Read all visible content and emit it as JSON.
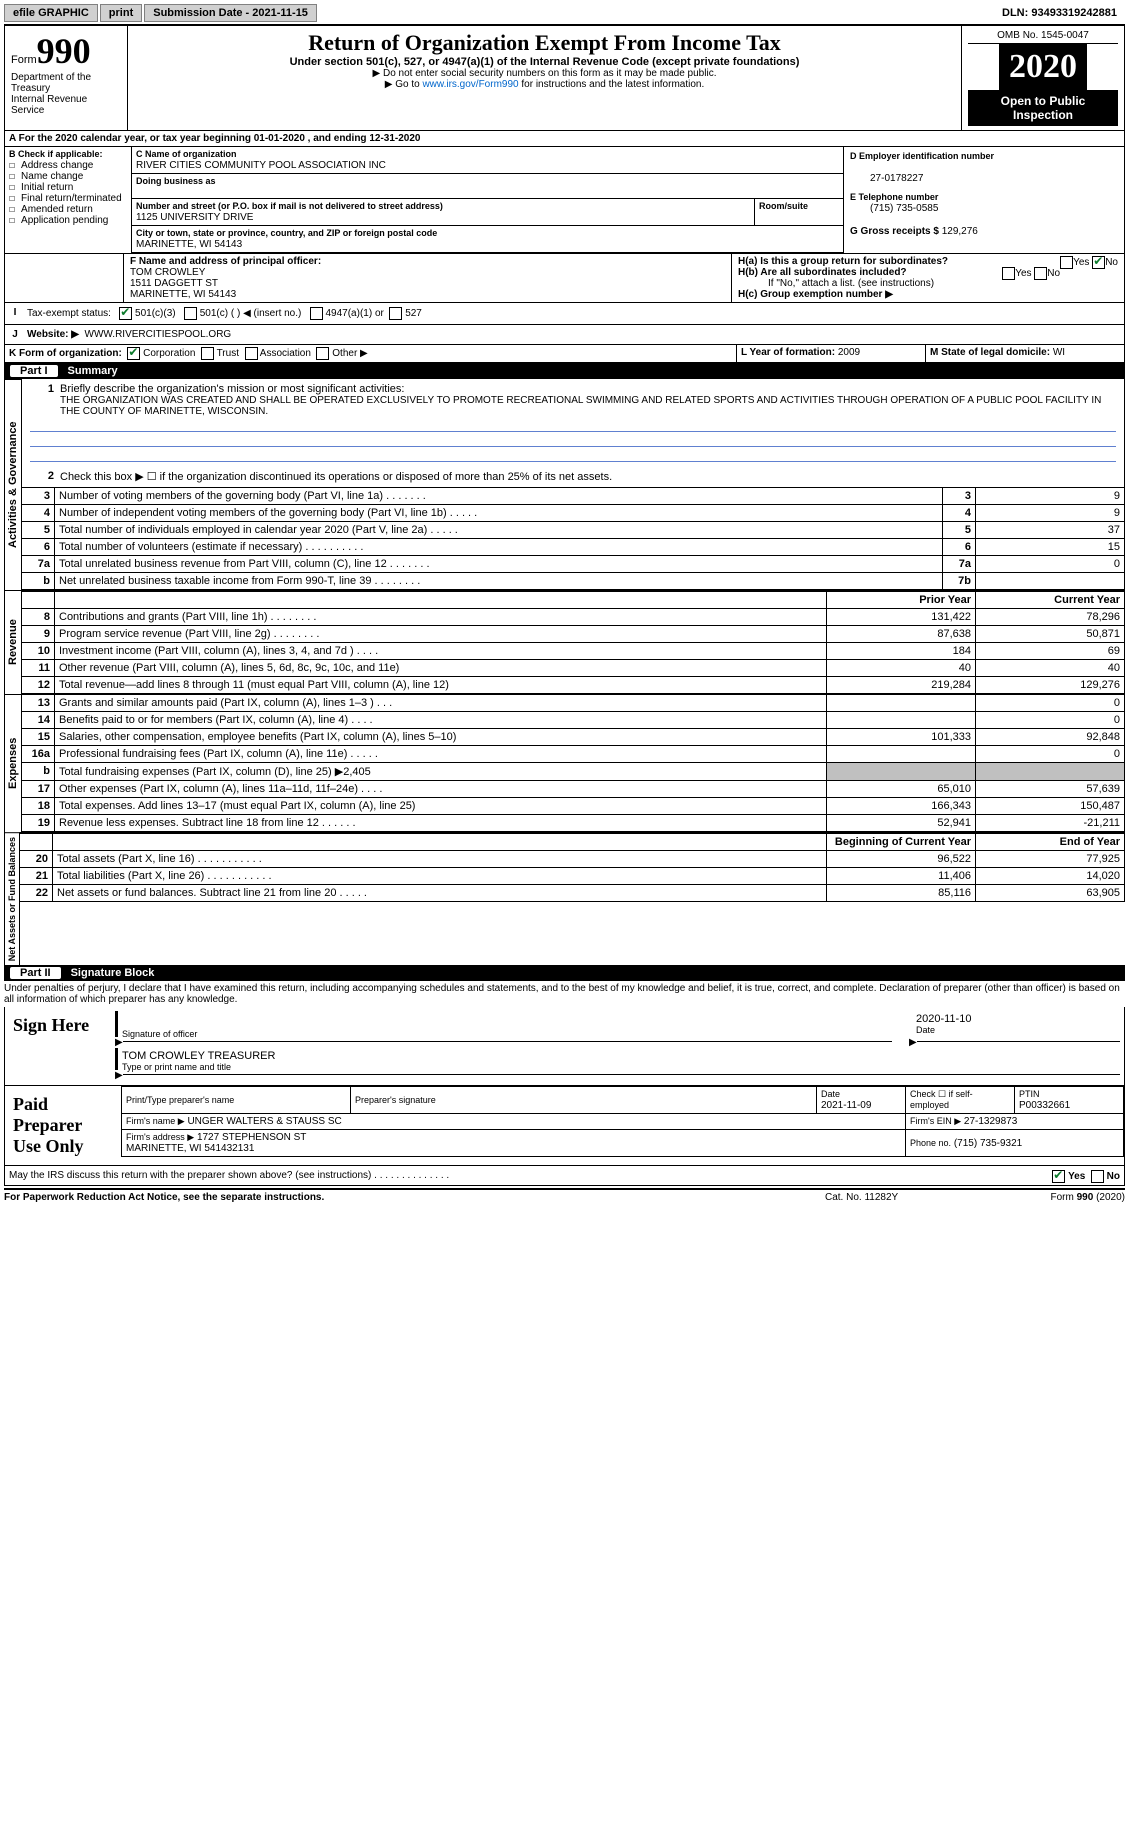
{
  "topbar": {
    "efile": "efile GRAPHIC",
    "print": "print",
    "submission_label": "Submission Date - 2021-11-15",
    "dln": "DLN: 93493319242881"
  },
  "header": {
    "form_word": "Form",
    "form_no": "990",
    "dept1": "Department of the Treasury",
    "dept2": "Internal Revenue Service",
    "title": "Return of Organization Exempt From Income Tax",
    "subtitle": "Under section 501(c), 527, or 4947(a)(1) of the Internal Revenue Code (except private foundations)",
    "note1": "▶ Do not enter social security numbers on this form as it may be made public.",
    "note2_pre": "▶ Go to ",
    "note2_link": "www.irs.gov/Form990",
    "note2_post": " for instructions and the latest information.",
    "omb": "OMB No. 1545-0047",
    "year": "2020",
    "open": "Open to Public Inspection"
  },
  "section_a": {
    "caption": "A For the 2020 calendar year, or tax year beginning 01-01-2020   , and ending 12-31-2020",
    "b_label": "B Check if applicable:",
    "b_items": [
      "Address change",
      "Name change",
      "Initial return",
      "Final return/terminated",
      "Amended return",
      "Application pending"
    ],
    "c_name_label": "C Name of organization",
    "c_name": "RIVER CITIES COMMUNITY POOL ASSOCIATION INC",
    "dba_label": "Doing business as",
    "addr_label": "Number and street (or P.O. box if mail is not delivered to street address)",
    "room_label": "Room/suite",
    "addr": "1125 UNIVERSITY DRIVE",
    "city_label": "City or town, state or province, country, and ZIP or foreign postal code",
    "city": "MARINETTE, WI  54143",
    "d_label": "D Employer identification number",
    "d_val": "27-0178227",
    "e_label": "E Telephone number",
    "e_val": "(715) 735-0585",
    "g_label": "G Gross receipts $",
    "g_val": "129,276",
    "f_label": "F Name and address of principal officer:",
    "f_name": "TOM CROWLEY",
    "f_addr1": "1511 DAGGETT ST",
    "f_addr2": "MARINETTE, WI  54143",
    "ha_label": "H(a)  Is this a group return for subordinates?",
    "hb_label": "H(b)  Are all subordinates included?",
    "hb_note": "If \"No,\" attach a list. (see instructions)",
    "hc_label": "H(c)  Group exemption number ▶",
    "yes": "Yes",
    "no": "No",
    "i_label": "Tax-exempt status:",
    "i_501c3": "501(c)(3)",
    "i_501c": "501(c) (  ) ◀ (insert no.)",
    "i_4947": "4947(a)(1) or",
    "i_527": "527",
    "j_label": "Website: ▶",
    "j_val": "WWW.RIVERCITIESPOOL.ORG",
    "k_label": "K Form of organization:",
    "k_corp": "Corporation",
    "k_trust": "Trust",
    "k_assoc": "Association",
    "k_other": "Other ▶",
    "l_label": "L Year of formation: ",
    "l_val": "2009",
    "m_label": "M State of legal domicile: ",
    "m_val": "WI"
  },
  "part1": {
    "title": "Summary",
    "q1": "Briefly describe the organization's mission or most significant activities:",
    "mission": "THE ORGANIZATION WAS CREATED AND SHALL BE OPERATED EXCLUSIVELY TO PROMOTE RECREATIONAL SWIMMING AND RELATED SPORTS AND ACTIVITIES THROUGH OPERATION OF A PUBLIC POOL FACILITY IN THE COUNTY OF MARINETTE, WISCONSIN.",
    "q2": "Check this box ▶ ☐  if the organization discontinued its operations or disposed of more than 25% of its net assets.",
    "tabs": {
      "gov": "Activities & Governance",
      "rev": "Revenue",
      "exp": "Expenses",
      "net": "Net Assets or Fund Balances"
    },
    "gov_rows": [
      {
        "n": "3",
        "desc": "Number of voting members of the governing body (Part VI, line 1a)   .    .    .    .    .    .    .",
        "num": "3",
        "val": "9"
      },
      {
        "n": "4",
        "desc": "Number of independent voting members of the governing body (Part VI, line 1b)   .    .    .    .    .",
        "num": "4",
        "val": "9"
      },
      {
        "n": "5",
        "desc": "Total number of individuals employed in calendar year 2020 (Part V, line 2a)   .    .    .    .    .",
        "num": "5",
        "val": "37"
      },
      {
        "n": "6",
        "desc": "Total number of volunteers (estimate if necessary)   .    .    .    .    .    .    .    .    .    .",
        "num": "6",
        "val": "15"
      },
      {
        "n": "7a",
        "desc": "Total unrelated business revenue from Part VIII, column (C), line 12   .    .    .    .    .    .    .",
        "num": "7a",
        "val": "0"
      },
      {
        "n": "b",
        "desc": "Net unrelated business taxable income from Form 990-T, line 39   .    .    .    .    .    .    .    .",
        "num": "7b",
        "val": ""
      }
    ],
    "col_prior": "Prior Year",
    "col_current": "Current Year",
    "rev_rows": [
      {
        "n": "8",
        "desc": "Contributions and grants (Part VIII, line 1h)   .    .    .    .    .    .    .    .",
        "p": "131,422",
        "c": "78,296"
      },
      {
        "n": "9",
        "desc": "Program service revenue (Part VIII, line 2g)   .    .    .    .    .    .    .    .",
        "p": "87,638",
        "c": "50,871"
      },
      {
        "n": "10",
        "desc": "Investment income (Part VIII, column (A), lines 3, 4, and 7d )   .    .    .    .",
        "p": "184",
        "c": "69"
      },
      {
        "n": "11",
        "desc": "Other revenue (Part VIII, column (A), lines 5, 6d, 8c, 9c, 10c, and 11e)",
        "p": "40",
        "c": "40"
      },
      {
        "n": "12",
        "desc": "Total revenue—add lines 8 through 11 (must equal Part VIII, column (A), line 12)",
        "p": "219,284",
        "c": "129,276"
      }
    ],
    "exp_rows": [
      {
        "n": "13",
        "desc": "Grants and similar amounts paid (Part IX, column (A), lines 1–3 )   .    .    .",
        "p": "",
        "c": "0"
      },
      {
        "n": "14",
        "desc": "Benefits paid to or for members (Part IX, column (A), line 4)   .    .    .    .",
        "p": "",
        "c": "0"
      },
      {
        "n": "15",
        "desc": "Salaries, other compensation, employee benefits (Part IX, column (A), lines 5–10)",
        "p": "101,333",
        "c": "92,848"
      },
      {
        "n": "16a",
        "desc": "Professional fundraising fees (Part IX, column (A), line 11e)   .    .    .    .    .",
        "p": "",
        "c": "0"
      },
      {
        "n": "b",
        "desc": "Total fundraising expenses (Part IX, column (D), line 25) ▶2,405",
        "p": "shade",
        "c": "shade"
      },
      {
        "n": "17",
        "desc": "Other expenses (Part IX, column (A), lines 11a–11d, 11f–24e)   .    .    .    .",
        "p": "65,010",
        "c": "57,639"
      },
      {
        "n": "18",
        "desc": "Total expenses. Add lines 13–17 (must equal Part IX, column (A), line 25)",
        "p": "166,343",
        "c": "150,487"
      },
      {
        "n": "19",
        "desc": "Revenue less expenses. Subtract line 18 from line 12   .    .    .    .    .    .",
        "p": "52,941",
        "c": "-21,211"
      }
    ],
    "col_beg": "Beginning of Current Year",
    "col_end": "End of Year",
    "net_rows": [
      {
        "n": "20",
        "desc": "Total assets (Part X, line 16)   .    .    .    .    .    .    .    .    .    .    .",
        "p": "96,522",
        "c": "77,925"
      },
      {
        "n": "21",
        "desc": "Total liabilities (Part X, line 26)   .    .    .    .    .    .    .    .    .    .    .",
        "p": "11,406",
        "c": "14,020"
      },
      {
        "n": "22",
        "desc": "Net assets or fund balances. Subtract line 21 from line 20   .    .    .    .    .",
        "p": "85,116",
        "c": "63,905"
      }
    ]
  },
  "part2": {
    "title": "Signature Block",
    "declaration": "Under penalties of perjury, I declare that I have examined this return, including accompanying schedules and statements, and to the best of my knowledge and belief, it is true, correct, and complete. Declaration of preparer (other than officer) is based on all information of which preparer has any knowledge.",
    "sign_here": "Sign Here",
    "sig_officer": "Signature of officer",
    "sig_date_label": "Date",
    "sig_date": "2020-11-10",
    "sig_name": "TOM CROWLEY TREASURER",
    "sig_name_label": "Type or print name and title",
    "paid": "Paid Preparer Use Only",
    "p_name_label": "Print/Type preparer's name",
    "p_sig_label": "Preparer's signature",
    "p_date_label": "Date",
    "p_date": "2021-11-09",
    "p_check_label": "Check ☐ if self-employed",
    "p_ptin_label": "PTIN",
    "p_ptin": "P00332661",
    "p_firm_name_label": "Firm's name     ▶",
    "p_firm_name": "UNGER WALTERS & STAUSS SC",
    "p_firm_ein_label": "Firm's EIN ▶",
    "p_firm_ein": "27-1329873",
    "p_firm_addr_label": "Firm's address ▶",
    "p_firm_addr": "1727 STEPHENSON ST\nMARINETTE, WI  541432131",
    "p_phone_label": "Phone no.",
    "p_phone": "(715) 735-9321",
    "discuss": "May the IRS discuss this return with the preparer shown above? (see instructions)    .    .    .    .    .    .    .    .    .    .    .    .    .    ."
  },
  "footer": {
    "paperwork": "For Paperwork Reduction Act Notice, see the separate instructions.",
    "catno": "Cat. No. 11282Y",
    "formno": "Form 990 (2020)"
  }
}
